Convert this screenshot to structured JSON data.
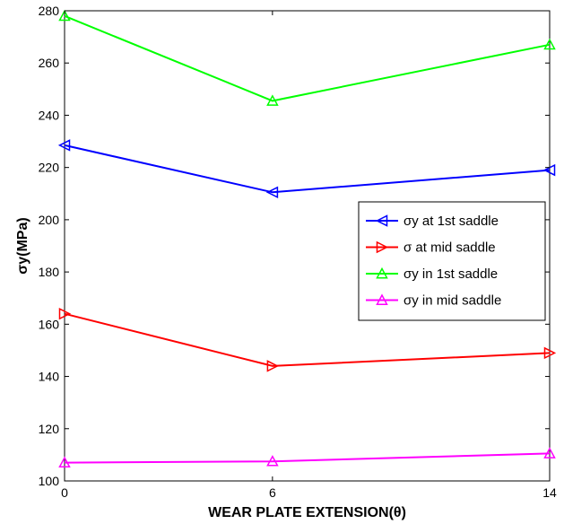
{
  "chart_data": {
    "type": "line",
    "xlabel": "WEAR PLATE EXTENSION(θ)",
    "ylabel": "σy(MPa)",
    "x": [
      0,
      6,
      14
    ],
    "x_tick_labels": [
      "0",
      "6",
      "14"
    ],
    "xlim": [
      0,
      14
    ],
    "ylim": [
      100,
      280
    ],
    "y_ticks": [
      100,
      120,
      140,
      160,
      180,
      200,
      220,
      240,
      260,
      280
    ],
    "grid": false,
    "legend_position": "right",
    "series": [
      {
        "name": "σy at 1st saddle",
        "color": "#0000ff",
        "marker": "triangle-left",
        "values": [
          228.5,
          210.5,
          219
        ]
      },
      {
        "name": "σ at mid saddle",
        "color": "#ff0000",
        "marker": "triangle-right",
        "values": [
          164,
          144,
          149
        ]
      },
      {
        "name": "σy in 1st saddle",
        "color": "#00ff00",
        "marker": "triangle-up",
        "values": [
          278,
          245.5,
          267
        ]
      },
      {
        "name": "σy in mid saddle",
        "color": "#ff00ff",
        "marker": "triangle-up",
        "values": [
          107,
          107.5,
          110.5
        ]
      }
    ]
  }
}
